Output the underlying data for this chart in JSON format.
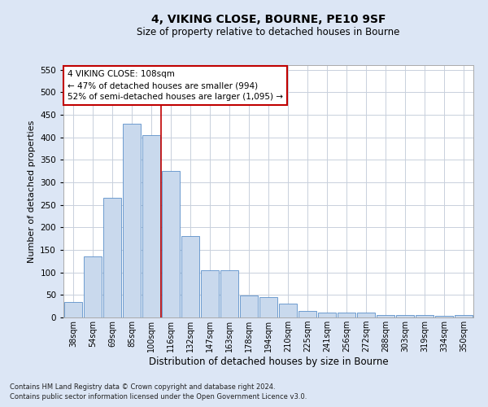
{
  "title1": "4, VIKING CLOSE, BOURNE, PE10 9SF",
  "title2": "Size of property relative to detached houses in Bourne",
  "xlabel": "Distribution of detached houses by size in Bourne",
  "ylabel": "Number of detached properties",
  "categories": [
    "38sqm",
    "54sqm",
    "69sqm",
    "85sqm",
    "100sqm",
    "116sqm",
    "132sqm",
    "147sqm",
    "163sqm",
    "178sqm",
    "194sqm",
    "210sqm",
    "225sqm",
    "241sqm",
    "256sqm",
    "272sqm",
    "288sqm",
    "303sqm",
    "319sqm",
    "334sqm",
    "350sqm"
  ],
  "values": [
    35,
    135,
    265,
    430,
    405,
    325,
    180,
    105,
    105,
    48,
    45,
    30,
    15,
    10,
    10,
    10,
    5,
    5,
    5,
    3,
    5
  ],
  "bar_color": "#c9d9ed",
  "bar_edge_color": "#5b8fc9",
  "vline_x_index": 4,
  "vline_color": "#c00000",
  "annotation_text": "4 VIKING CLOSE: 108sqm\n← 47% of detached houses are smaller (994)\n52% of semi-detached houses are larger (1,095) →",
  "annotation_box_color": "#ffffff",
  "annotation_box_edge_color": "#c00000",
  "footer1": "Contains HM Land Registry data © Crown copyright and database right 2024.",
  "footer2": "Contains public sector information licensed under the Open Government Licence v3.0.",
  "fig_bg_color": "#dce6f5",
  "plot_bg_color": "#ffffff",
  "ylim": [
    0,
    560
  ],
  "yticks": [
    0,
    50,
    100,
    150,
    200,
    250,
    300,
    350,
    400,
    450,
    500,
    550
  ],
  "grid_color": "#c8d0dc",
  "title1_fontsize": 10,
  "title2_fontsize": 8.5,
  "ylabel_fontsize": 8,
  "xlabel_fontsize": 8.5
}
